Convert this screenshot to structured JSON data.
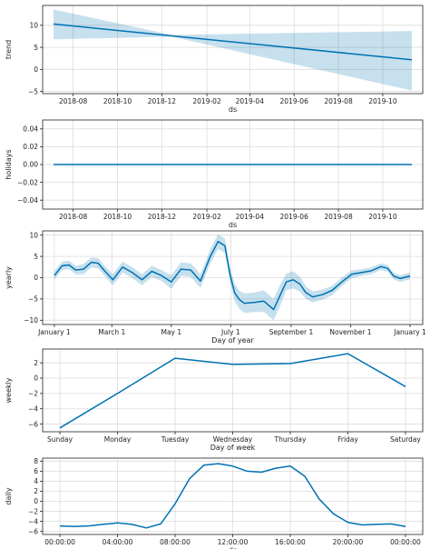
{
  "colors": {
    "line": "#0072B2",
    "band": "#0072B2",
    "grid": "#dcdcdc",
    "axis": "#222222"
  },
  "chart_data": [
    {
      "type": "area",
      "id": "trend",
      "xlabel": "ds",
      "ylabel": "trend",
      "grid": true,
      "x_range": [
        "2018-06-20",
        "2019-11-25"
      ],
      "ylim": [
        -5.5,
        14.5
      ],
      "x_ticks": [
        {
          "x": "2018-08-01",
          "label": "2018-08"
        },
        {
          "x": "2018-10-01",
          "label": "2018-10"
        },
        {
          "x": "2018-12-01",
          "label": "2018-12"
        },
        {
          "x": "2019-02-01",
          "label": "2019-02"
        },
        {
          "x": "2019-04-01",
          "label": "2019-04"
        },
        {
          "x": "2019-06-01",
          "label": "2019-06"
        },
        {
          "x": "2019-08-01",
          "label": "2019-08"
        },
        {
          "x": "2019-10-01",
          "label": "2019-10"
        }
      ],
      "y_ticks": [
        -5,
        0,
        5,
        10
      ],
      "series": [
        {
          "values": [
            {
              "x": "2018-07-05",
              "y": 10.3
            },
            {
              "x": "2018-12-15",
              "y": 7.6
            },
            {
              "x": "2019-11-10",
              "y": 2.2
            }
          ],
          "lower": [
            {
              "x": "2018-07-05",
              "y": 6.8
            },
            {
              "x": "2018-12-15",
              "y": 7.4
            },
            {
              "x": "2019-11-10",
              "y": -4.8
            }
          ],
          "upper": [
            {
              "x": "2018-07-05",
              "y": 13.6
            },
            {
              "x": "2018-12-15",
              "y": 7.8
            },
            {
              "x": "2019-11-10",
              "y": 8.7
            }
          ]
        }
      ]
    },
    {
      "type": "line",
      "id": "holidays",
      "xlabel": "ds",
      "ylabel": "holidays",
      "grid": true,
      "x_range": [
        "2018-06-20",
        "2019-11-25"
      ],
      "ylim": [
        -0.05,
        0.05
      ],
      "x_ticks": [
        {
          "x": "2018-08-01",
          "label": "2018-08"
        },
        {
          "x": "2018-10-01",
          "label": "2018-10"
        },
        {
          "x": "2018-12-01",
          "label": "2018-12"
        },
        {
          "x": "2019-02-01",
          "label": "2019-02"
        },
        {
          "x": "2019-04-01",
          "label": "2019-04"
        },
        {
          "x": "2019-06-01",
          "label": "2019-06"
        },
        {
          "x": "2019-08-01",
          "label": "2019-08"
        },
        {
          "x": "2019-10-01",
          "label": "2019-10"
        }
      ],
      "y_ticks": [
        {
          "y": -0.04,
          "label": "−0.04"
        },
        {
          "y": -0.02,
          "label": "−0.02"
        },
        {
          "y": 0.0,
          "label": "0.00"
        },
        {
          "y": 0.02,
          "label": "0.02"
        },
        {
          "y": 0.04,
          "label": "0.04"
        }
      ],
      "series": [
        {
          "values": [
            {
              "x": "2018-07-05",
              "y": 0.0
            },
            {
              "x": "2019-11-10",
              "y": 0.0
            }
          ]
        }
      ]
    },
    {
      "type": "area",
      "id": "yearly",
      "xlabel": "Day of year",
      "ylabel": "yearly",
      "grid": true,
      "x_range": [
        -12,
        378
      ],
      "ylim": [
        -11,
        11
      ],
      "x_ticks": [
        {
          "x": 0,
          "label": "January 1"
        },
        {
          "x": 59,
          "label": "March 1"
        },
        {
          "x": 120,
          "label": "May 1"
        },
        {
          "x": 181,
          "label": "July 1"
        },
        {
          "x": 243,
          "label": "September 1"
        },
        {
          "x": 304,
          "label": "November 1"
        },
        {
          "x": 365,
          "label": "January 1"
        }
      ],
      "y_ticks": [
        -10,
        -5,
        0,
        5,
        10
      ],
      "series": [
        {
          "x": [
            0,
            8,
            15,
            22,
            30,
            38,
            45,
            52,
            60,
            70,
            80,
            90,
            100,
            110,
            120,
            130,
            140,
            150,
            160,
            168,
            175,
            180,
            185,
            190,
            195,
            205,
            215,
            225,
            232,
            238,
            245,
            252,
            258,
            265,
            275,
            285,
            295,
            305,
            315,
            325,
            335,
            342,
            348,
            355,
            365
          ],
          "y": [
            0.5,
            2.8,
            3.0,
            1.8,
            2.0,
            3.6,
            3.4,
            1.5,
            -0.5,
            2.5,
            1.2,
            -0.5,
            1.5,
            0.5,
            -1.0,
            2.0,
            1.8,
            -0.8,
            5.0,
            8.5,
            7.5,
            1.0,
            -3.5,
            -5.2,
            -6.0,
            -5.8,
            -5.5,
            -7.5,
            -4.0,
            -1.0,
            -0.5,
            -1.5,
            -3.5,
            -4.5,
            -4.0,
            -3.0,
            -1.0,
            0.8,
            1.2,
            1.6,
            2.6,
            2.2,
            0.4,
            -0.2,
            0.4
          ],
          "lower": [
            -0.5,
            1.8,
            2.0,
            0.8,
            0.8,
            2.4,
            2.2,
            0.3,
            -1.8,
            1.2,
            -0.1,
            -1.8,
            0.2,
            -0.8,
            -2.6,
            0.4,
            0.2,
            -2.4,
            3.3,
            6.8,
            5.8,
            -0.7,
            -5.5,
            -7.3,
            -8.3,
            -8.1,
            -8.0,
            -10.0,
            -6.5,
            -3.0,
            -2.5,
            -3.3,
            -5.0,
            -5.8,
            -5.2,
            -4.1,
            -2.0,
            -0.1,
            0.4,
            0.8,
            1.8,
            1.4,
            -0.4,
            -1.0,
            -0.4
          ],
          "upper": [
            1.5,
            3.8,
            4.0,
            2.8,
            3.2,
            4.8,
            4.6,
            2.7,
            0.8,
            3.8,
            2.5,
            0.8,
            2.8,
            1.8,
            0.6,
            3.6,
            3.4,
            0.8,
            6.7,
            10.2,
            9.2,
            2.7,
            -1.5,
            -3.1,
            -3.7,
            -3.5,
            -3.0,
            -5.0,
            -1.5,
            1.0,
            1.5,
            0.3,
            -2.0,
            -3.2,
            -2.8,
            -1.9,
            0.0,
            1.7,
            2.0,
            2.4,
            3.4,
            3.0,
            1.2,
            0.6,
            1.2
          ]
        }
      ]
    },
    {
      "type": "line",
      "id": "weekly",
      "xlabel": "Day of week",
      "ylabel": "weekly",
      "grid": true,
      "x_range": [
        -0.3,
        6.3
      ],
      "ylim": [
        -7,
        3.8
      ],
      "categories": [
        "Sunday",
        "Monday",
        "Tuesday",
        "Wednesday",
        "Thursday",
        "Friday",
        "Saturday"
      ],
      "y_ticks": [
        -6,
        -4,
        -2,
        0,
        2
      ],
      "series": [
        {
          "values": [
            -6.5,
            -2.0,
            2.6,
            1.8,
            1.9,
            3.2,
            -1.1
          ]
        }
      ]
    },
    {
      "type": "line",
      "id": "daily",
      "xlabel": "ds",
      "ylabel": "daily",
      "grid": true,
      "x_range": [
        -1.2,
        25.2
      ],
      "ylim": [
        -6.6,
        8.6
      ],
      "x_ticks": [
        {
          "x": 0,
          "label": "00:00:00"
        },
        {
          "x": 4,
          "label": "04:00:00"
        },
        {
          "x": 8,
          "label": "08:00:00"
        },
        {
          "x": 12,
          "label": "12:00:00"
        },
        {
          "x": 16,
          "label": "16:00:00"
        },
        {
          "x": 20,
          "label": "20:00:00"
        },
        {
          "x": 24,
          "label": "00:00:00"
        }
      ],
      "y_ticks": [
        -6,
        -4,
        -2,
        0,
        2,
        4,
        6,
        8
      ],
      "series": [
        {
          "x": [
            0,
            1,
            2,
            3,
            4,
            5,
            6,
            7,
            8,
            9,
            10,
            11,
            12,
            13,
            14,
            15,
            16,
            17,
            18,
            19,
            20,
            21,
            22,
            23,
            24
          ],
          "y": [
            -4.9,
            -5.0,
            -4.9,
            -4.6,
            -4.3,
            -4.6,
            -5.3,
            -4.5,
            -0.5,
            4.5,
            7.2,
            7.5,
            7.0,
            6.0,
            5.8,
            6.6,
            7.0,
            5.0,
            0.5,
            -2.5,
            -4.2,
            -4.7,
            -4.6,
            -4.5,
            -5.0
          ]
        }
      ]
    }
  ]
}
